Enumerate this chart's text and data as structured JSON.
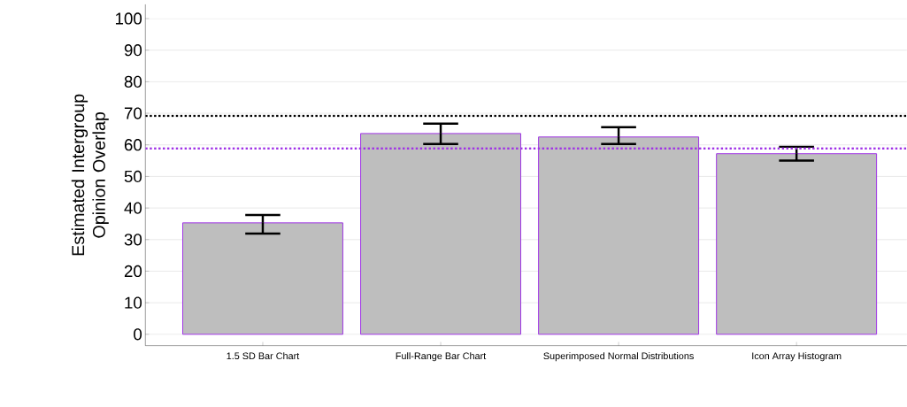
{
  "chart_data": {
    "type": "bar",
    "ylabel": "Estimated Intergroup Opinion Overlap",
    "categories": [
      "1.5 SD Bar Chart",
      "Full-Range Bar Chart",
      "Superimposed Normal Distributions",
      "Icon Array Histogram"
    ],
    "values": [
      35.3,
      63.6,
      62.5,
      57.2
    ],
    "errors": [
      [
        31.9,
        37.8
      ],
      [
        60.3,
        66.7
      ],
      [
        60.3,
        65.6
      ],
      [
        55.0,
        59.4
      ]
    ],
    "color": "#bebebe",
    "ylim": [
      -3.6,
      104.5
    ],
    "yticks": [
      0,
      10,
      20,
      30,
      40,
      50,
      60,
      70,
      80,
      90,
      100
    ],
    "grid": "y",
    "ref_lines": [
      {
        "axis": "y",
        "value": 69.2,
        "color": "#000000",
        "line_style": "dotted"
      },
      {
        "axis": "y",
        "value": 58.9,
        "color": "#a033e6",
        "line_style": "dotted"
      }
    ]
  }
}
